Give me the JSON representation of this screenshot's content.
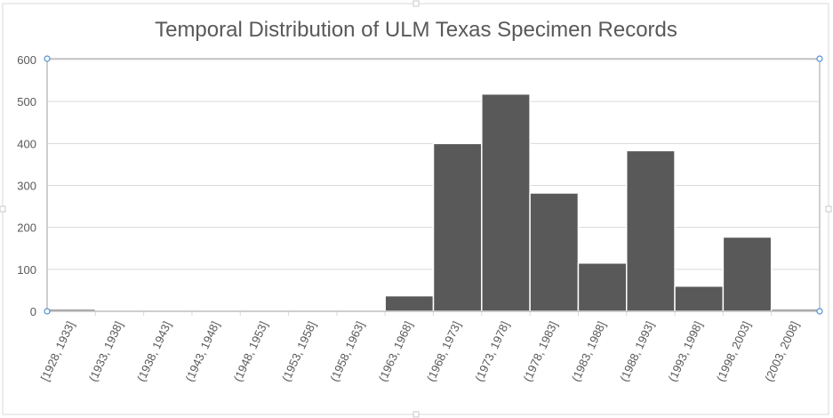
{
  "chart_data": {
    "type": "bar",
    "title": "Temporal Distribution of ULM Texas Specimen Records",
    "xlabel": "",
    "ylabel": "",
    "categories": [
      "[1928, 1933]",
      "(1933, 1938]",
      "(1938, 1943]",
      "(1943, 1948]",
      "(1948, 1953]",
      "(1953, 1958]",
      "(1958, 1963]",
      "(1963, 1968]",
      "(1968, 1973]",
      "(1973, 1978]",
      "(1978, 1983]",
      "(1983, 1988]",
      "(1988, 1993]",
      "(1993, 1998]",
      "(1998, 2003]",
      "(2003, 2008]"
    ],
    "values": [
      5,
      0,
      0,
      0,
      0,
      0,
      0,
      37,
      400,
      518,
      282,
      115,
      383,
      60,
      177,
      5
    ],
    "yticks": [
      "0",
      "100",
      "200",
      "300",
      "400",
      "500",
      "600"
    ],
    "ylim": [
      0,
      600
    ],
    "grid": true,
    "legend": "none",
    "colors": {
      "bar": "#595959",
      "bar_edge": "#ffffff",
      "grid": "#d9d9d9",
      "text": "#595959"
    }
  }
}
